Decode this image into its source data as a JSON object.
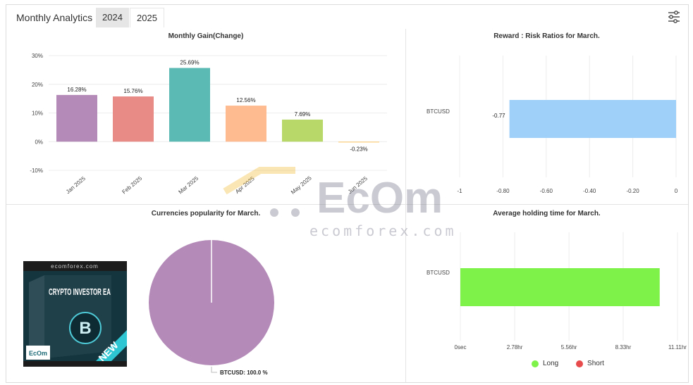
{
  "header": {
    "title": "Monthly Analytics",
    "tabs": [
      {
        "label": "2024",
        "active": false
      },
      {
        "label": "2025",
        "active": true
      }
    ],
    "settings_icon": "sliders-icon"
  },
  "panels": {
    "gain_title": "Monthly Gain(Change)",
    "reward_title": "Reward : Risk Ratios for March.",
    "currency_title": "Currencies popularity for March.",
    "holding_title": "Average holding time for March."
  },
  "watermark": {
    "logo_text": "EcOm",
    "domain": "ecomforex.com"
  },
  "ad": {
    "brand": "ecomforex.com",
    "product": "CRYPTO INVESTOR EA",
    "badge": "NEW",
    "logo": "EcOm",
    "coin_symbol": "B"
  },
  "legend": [
    {
      "label": "Long",
      "color": "#7ff24a"
    },
    {
      "label": "Short",
      "color": "#e84b4b"
    }
  ],
  "chart_data": [
    {
      "type": "bar",
      "title": "Monthly Gain(Change)",
      "categories": [
        "Jan 2025",
        "Feb 2025",
        "Mar 2025",
        "Apr 2025",
        "May 2025",
        "Jun 2025"
      ],
      "values": [
        16.28,
        15.76,
        25.69,
        12.56,
        7.69,
        -0.23
      ],
      "value_labels": [
        "16.28%",
        "15.76%",
        "25.69%",
        "12.56%",
        "7.69%",
        "-0.23%"
      ],
      "colors": [
        "#b48ab8",
        "#e88a86",
        "#5bbab3",
        "#ffbb90",
        "#b8d86a",
        "#ffd27f"
      ],
      "ylim": [
        -10,
        30
      ],
      "yticks": [
        30,
        20,
        10,
        0,
        -10
      ],
      "ytick_labels": [
        "30%",
        "20%",
        "10%",
        "0%",
        "-10%"
      ],
      "grid": true
    },
    {
      "type": "bar",
      "orientation": "horizontal",
      "title": "Reward : Risk Ratios for March.",
      "categories": [
        "BTCUSD"
      ],
      "values": [
        -0.77
      ],
      "value_labels": [
        "-0.77"
      ],
      "colors": [
        "#9fd0fa"
      ],
      "xlim": [
        -1,
        0
      ],
      "xticks": [
        -1,
        -0.8,
        -0.6,
        -0.4,
        -0.2,
        0
      ],
      "xtick_labels": [
        "-1",
        "-0.80",
        "-0.60",
        "-0.40",
        "-0.20",
        "0"
      ],
      "grid": true
    },
    {
      "type": "pie",
      "title": "Currencies popularity for March.",
      "labels": [
        "BTCUSD"
      ],
      "values": [
        100.0
      ],
      "value_labels": [
        "BTCUSD: 100.0 %"
      ],
      "colors": [
        "#b48ab8"
      ]
    },
    {
      "type": "bar",
      "orientation": "horizontal",
      "title": "Average holding time for March.",
      "categories": [
        "BTCUSD"
      ],
      "series": [
        {
          "name": "Long",
          "values": [
            10.2
          ],
          "color": "#7ff24a"
        },
        {
          "name": "Short",
          "values": [
            0
          ],
          "color": "#e84b4b"
        }
      ],
      "xlim": [
        0,
        11.11
      ],
      "xticks": [
        0,
        2.78,
        5.56,
        8.33,
        11.11
      ],
      "xtick_labels": [
        "0sec",
        "2.78hr",
        "5.56hr",
        "8.33hr",
        "11.11hr"
      ],
      "legend": "bottom",
      "grid": true
    }
  ]
}
